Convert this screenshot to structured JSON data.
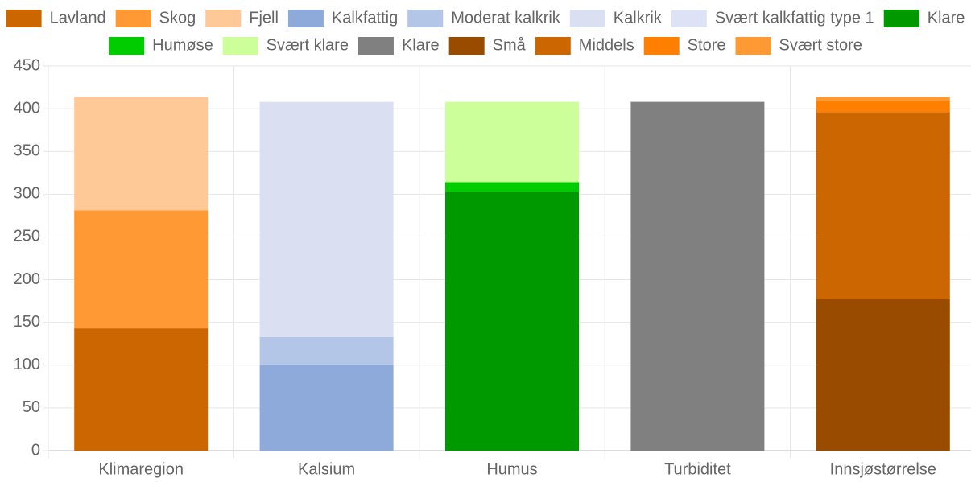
{
  "chart_data": {
    "type": "stacked_bar",
    "categories": [
      "Klimaregion",
      "Kalsium",
      "Humus",
      "Turbiditet",
      "Innsjøstørrelse"
    ],
    "series": [
      {
        "name": "Lavland",
        "color": "#cc6600",
        "values": [
          143,
          null,
          null,
          null,
          null
        ]
      },
      {
        "name": "Skog",
        "color": "#ff9933",
        "values": [
          138,
          null,
          null,
          null,
          null
        ]
      },
      {
        "name": "Fjell",
        "color": "#ffc896",
        "values": [
          133,
          null,
          null,
          null,
          null
        ]
      },
      {
        "name": "Kalkfattig",
        "color": "#8eaadb",
        "values": [
          null,
          101,
          null,
          null,
          null
        ]
      },
      {
        "name": "Moderat kalkrik",
        "color": "#b4c6e7",
        "values": [
          null,
          32,
          null,
          null,
          null
        ]
      },
      {
        "name": "Kalkrik",
        "color": "#dae0f2",
        "values": [
          null,
          275,
          null,
          null,
          null
        ]
      },
      {
        "name": "Svært kalkfattig type 1",
        "color": "#dde3f4",
        "values": [
          null,
          0,
          null,
          null,
          null
        ]
      },
      {
        "name": "Klare",
        "color": "#009900",
        "values": [
          null,
          null,
          303,
          null,
          null
        ]
      },
      {
        "name": "Humøse",
        "color": "#00cc00",
        "values": [
          null,
          null,
          11,
          null,
          null
        ]
      },
      {
        "name": "Svært klare",
        "color": "#ccff99",
        "values": [
          null,
          null,
          94,
          null,
          null
        ]
      },
      {
        "name": "Klare",
        "color": "#808080",
        "values": [
          null,
          null,
          null,
          408,
          null
        ]
      },
      {
        "name": "Små",
        "color": "#994c00",
        "values": [
          null,
          null,
          null,
          null,
          177
        ]
      },
      {
        "name": "Middels",
        "color": "#cc6600",
        "values": [
          null,
          null,
          null,
          null,
          219
        ]
      },
      {
        "name": "Store",
        "color": "#ff8000",
        "values": [
          null,
          null,
          null,
          null,
          13
        ]
      },
      {
        "name": "Svært store",
        "color": "#ff9933",
        "values": [
          null,
          null,
          null,
          null,
          5
        ]
      }
    ],
    "ylim": [
      0,
      450
    ],
    "yticks": [
      0,
      50,
      100,
      150,
      200,
      250,
      300,
      350,
      400,
      450
    ],
    "grid": true
  }
}
